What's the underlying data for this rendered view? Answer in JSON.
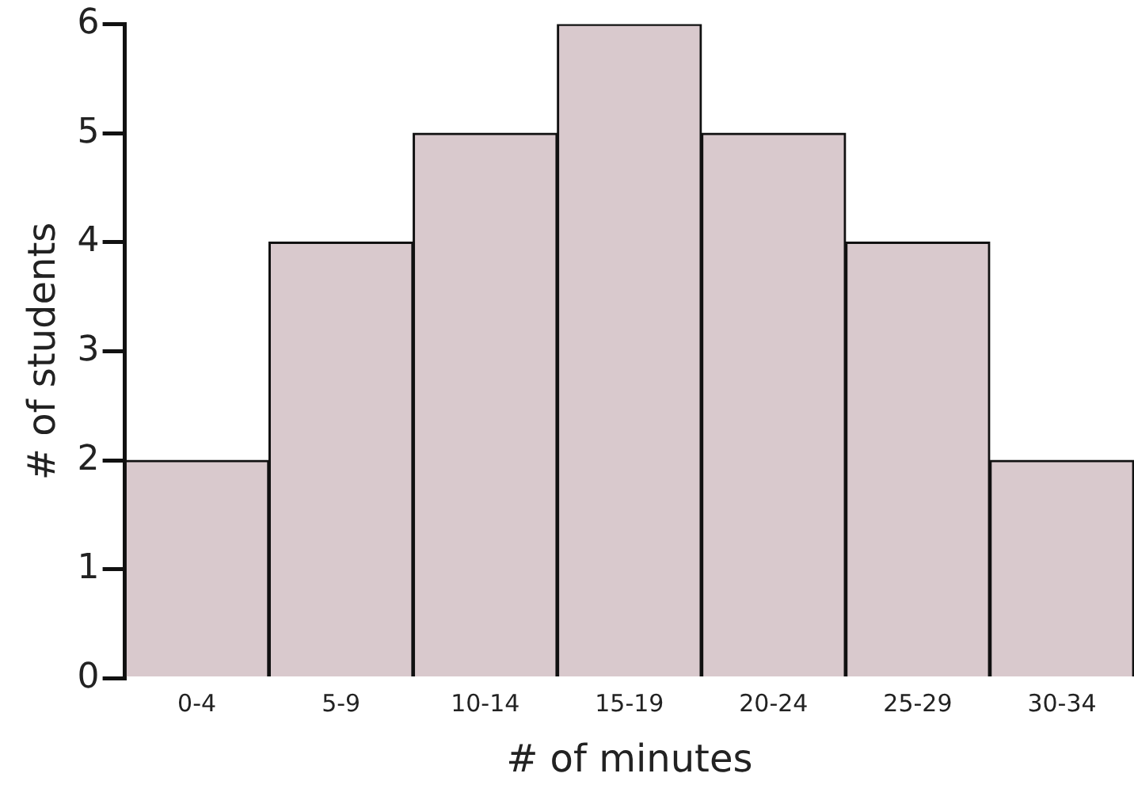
{
  "chart_data": {
    "type": "bar",
    "xlabel": "# of minutes",
    "ylabel": "# of students",
    "categories": [
      "0-4",
      "5-9",
      "10-14",
      "15-19",
      "20-24",
      "25-29",
      "30-34"
    ],
    "values": [
      2,
      4,
      5,
      6,
      5,
      4,
      2
    ],
    "color": "#d9c9cd",
    "ylim": [
      0,
      6
    ],
    "yticks": [
      0,
      1,
      2,
      3,
      4,
      5,
      6
    ],
    "grid": false,
    "legend": false
  }
}
